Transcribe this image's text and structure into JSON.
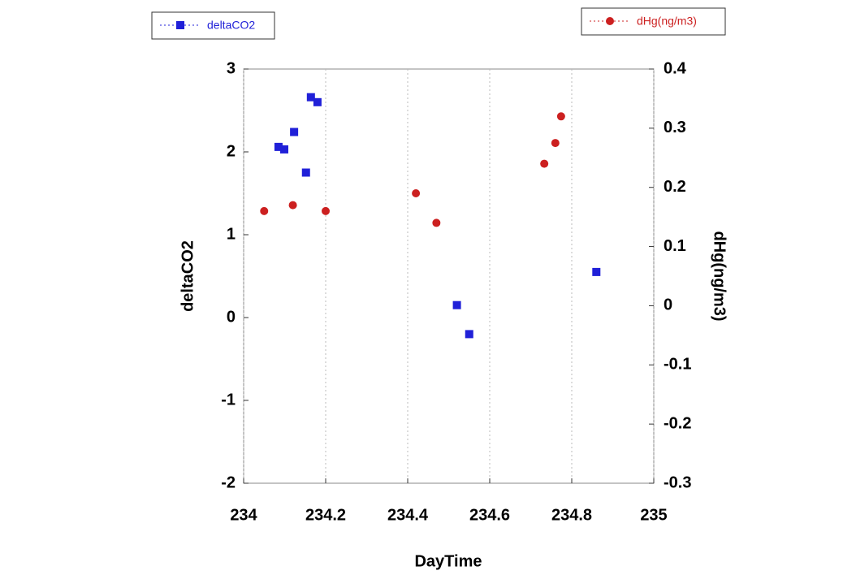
{
  "chart_data": {
    "type": "scatter",
    "xlabel": "DayTime",
    "ylabel": "deltaCO2",
    "y2label": "dHg(ng/m3)",
    "xlim": [
      234,
      235
    ],
    "xticks": [
      234,
      234.2,
      234.4,
      234.6,
      234.8,
      235
    ],
    "ylim": [
      -2,
      3
    ],
    "yticks": [
      -2,
      -1,
      0,
      1,
      2,
      3
    ],
    "y2lim": [
      -0.3,
      0.4
    ],
    "y2ticks": [
      -0.3,
      -0.2,
      -0.1,
      0,
      0.1,
      0.2,
      0.3,
      0.4
    ],
    "grid": true,
    "series": [
      {
        "name": "deltaCO2",
        "color": "#2020d8",
        "marker": "square",
        "x": [
          234.085,
          234.099,
          234.123,
          234.152,
          234.164,
          234.18,
          234.52,
          234.55,
          234.86
        ],
        "values": [
          2.06,
          2.03,
          2.24,
          1.75,
          2.66,
          2.6,
          0.15,
          -0.2,
          0.55
        ]
      },
      {
        "name": "dHg(ng/m3)",
        "color": "#cc2020",
        "marker": "circle",
        "axis": "y2",
        "x": [
          234.05,
          234.12,
          234.2,
          234.42,
          234.47,
          234.733,
          234.76,
          234.774
        ],
        "values": [
          0.16,
          0.17,
          0.16,
          0.19,
          0.14,
          0.24,
          0.275,
          0.32
        ]
      }
    ]
  }
}
